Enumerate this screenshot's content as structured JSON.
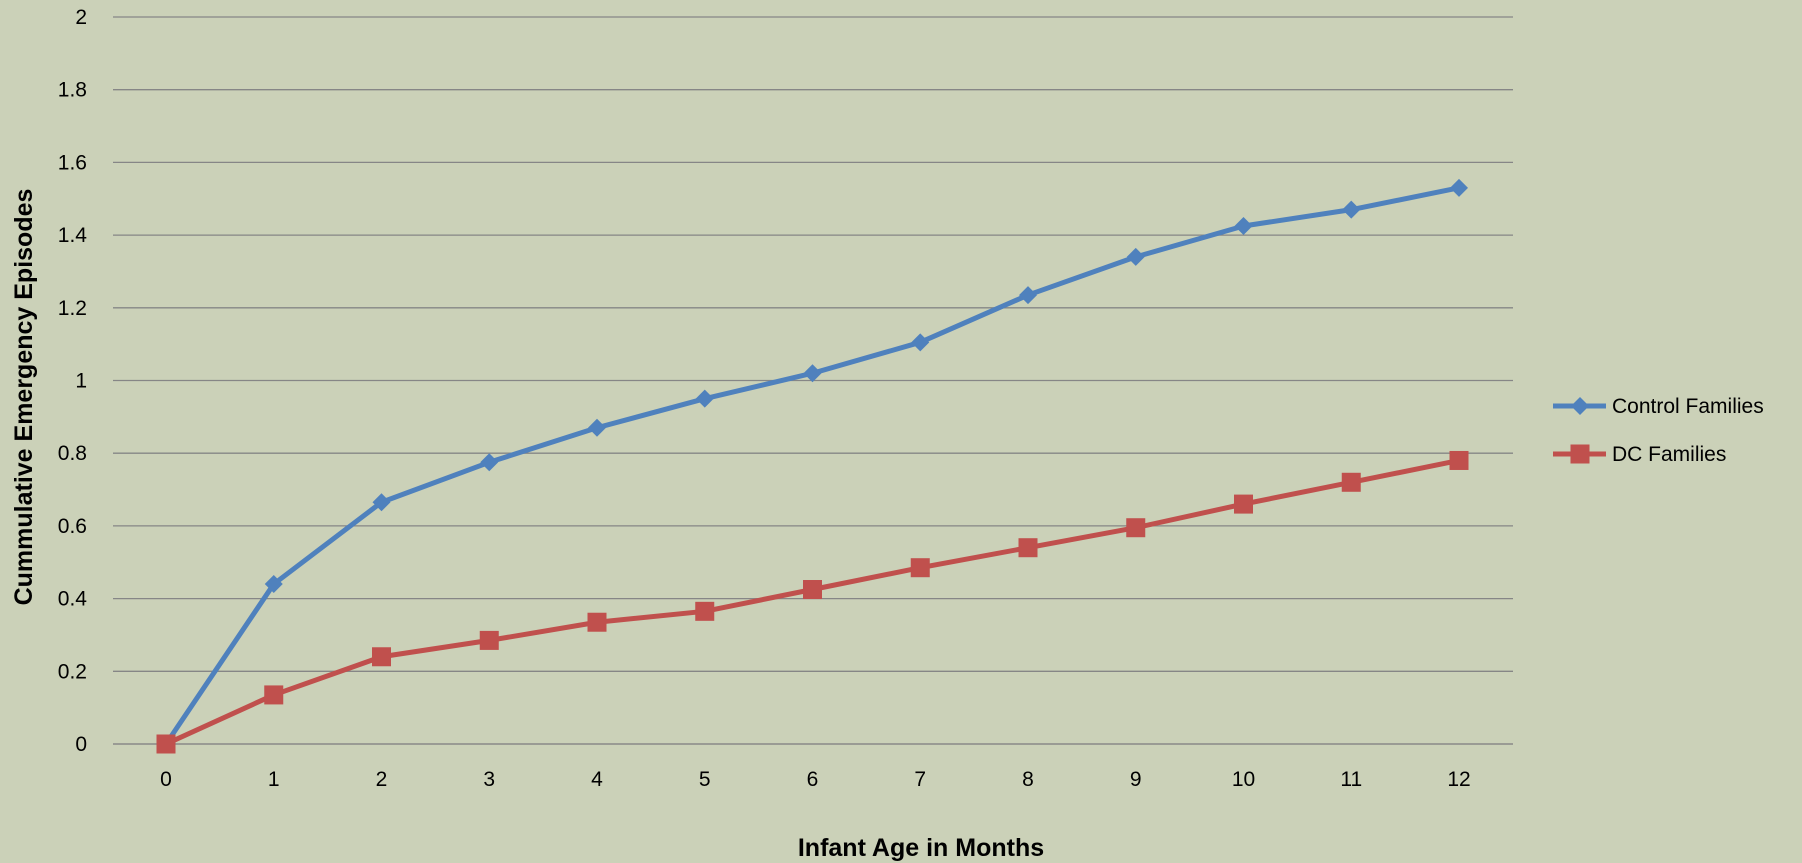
{
  "chart_data": {
    "type": "line",
    "title": "",
    "xlabel": "Infant Age in Months",
    "ylabel": "Cummulative Emergency Episodes",
    "x": [
      "0",
      "1",
      "2",
      "3",
      "4",
      "5",
      "6",
      "7",
      "8",
      "9",
      "10",
      "11",
      "12"
    ],
    "ylim": [
      0,
      2
    ],
    "yticks": [
      "0",
      "0.2",
      "0.4",
      "0.6",
      "0.8",
      "1",
      "1.2",
      "1.4",
      "1.6",
      "1.8",
      "2"
    ],
    "grid": true,
    "legend_position": "right",
    "series": [
      {
        "name": "Control Families",
        "color": "#4f81bd",
        "marker": "diamond",
        "values": [
          0,
          0.44,
          0.665,
          0.775,
          0.87,
          0.95,
          1.02,
          1.105,
          1.235,
          1.34,
          1.425,
          1.47,
          1.53
        ]
      },
      {
        "name": "DC Families",
        "color": "#c0504d",
        "marker": "square",
        "values": [
          0,
          0.135,
          0.24,
          0.285,
          0.335,
          0.365,
          0.425,
          0.485,
          0.54,
          0.595,
          0.66,
          0.72,
          0.78
        ]
      }
    ]
  }
}
